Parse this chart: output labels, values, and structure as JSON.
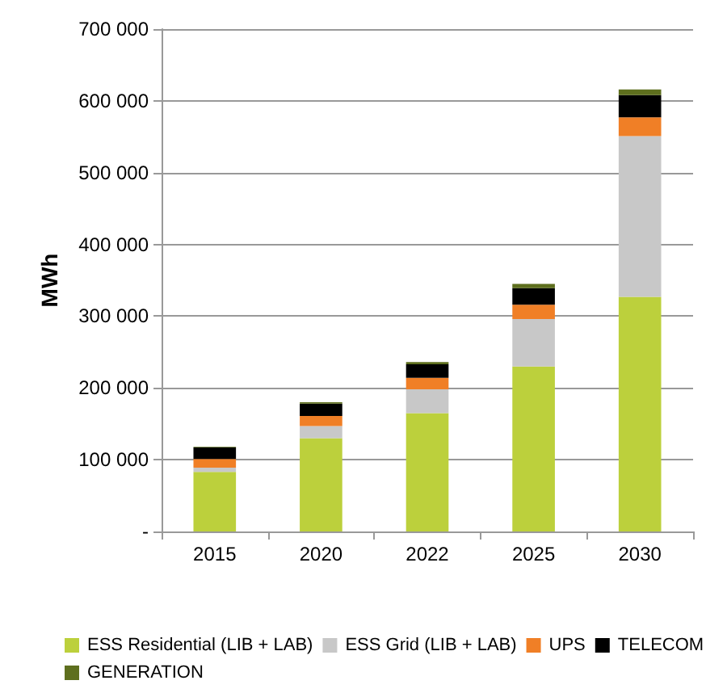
{
  "chart_data": {
    "type": "bar",
    "stacked": true,
    "ylabel": "MWh",
    "categories": [
      "2015",
      "2020",
      "2022",
      "2025",
      "2030"
    ],
    "series": [
      {
        "name": "ESS Residential (LIB + LAB)",
        "color": "#bcd03c",
        "values": [
          83000,
          130000,
          165000,
          230000,
          327000
        ]
      },
      {
        "name": "ESS Grid (LIB + LAB)",
        "color": "#c8c8c8",
        "values": [
          6000,
          17000,
          33000,
          66000,
          224000
        ]
      },
      {
        "name": "UPS",
        "color": "#f07f26",
        "values": [
          12000,
          14000,
          16000,
          20000,
          26000
        ]
      },
      {
        "name": "TELECOM",
        "color": "#000000",
        "values": [
          16000,
          17000,
          19000,
          23000,
          31000
        ]
      },
      {
        "name": "GENERATION",
        "color": "#5e6f1e",
        "values": [
          1000,
          2000,
          3000,
          6000,
          8000
        ]
      }
    ],
    "ylim": [
      0,
      700000
    ],
    "yticks": [
      {
        "value": 0,
        "label": "-"
      },
      {
        "value": 100000,
        "label": "100 000"
      },
      {
        "value": 200000,
        "label": "200 000"
      },
      {
        "value": 300000,
        "label": "300 000"
      },
      {
        "value": 400000,
        "label": "400 000"
      },
      {
        "value": 500000,
        "label": "500 000"
      },
      {
        "value": 600000,
        "label": "600 000"
      },
      {
        "value": 700000,
        "label": "700 000"
      }
    ],
    "grid": "y",
    "legend": "bottom"
  }
}
